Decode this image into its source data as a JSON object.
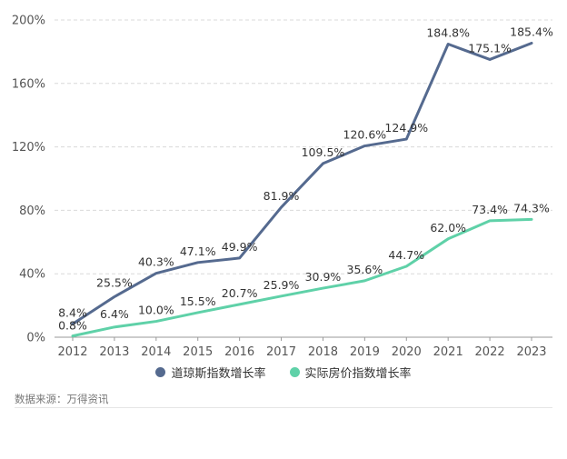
{
  "chart_data": {
    "type": "line",
    "categories": [
      "2012",
      "2013",
      "2014",
      "2015",
      "2016",
      "2017",
      "2018",
      "2019",
      "2020",
      "2021",
      "2022",
      "2023"
    ],
    "series": [
      {
        "name": "道琼斯指数增长率",
        "color": "#556a8f",
        "values": [
          8.4,
          25.5,
          40.3,
          47.1,
          49.9,
          81.9,
          109.5,
          120.6,
          124.9,
          184.8,
          175.1,
          185.4
        ],
        "labels": [
          "8.4%",
          "25.5%",
          "40.3%",
          "47.1%",
          "49.9%",
          "81.9%",
          "109.5%",
          "120.6%",
          "124.9%",
          "184.8%",
          "175.1%",
          "185.4%"
        ]
      },
      {
        "name": "实际房价指数增长率",
        "color": "#5fd1a8",
        "values": [
          0.8,
          6.4,
          10.0,
          15.5,
          20.7,
          25.9,
          30.9,
          35.6,
          44.7,
          62.0,
          73.4,
          74.3
        ],
        "labels": [
          "0.8%",
          "6.4%",
          "10.0%",
          "15.5%",
          "20.7%",
          "25.9%",
          "30.9%",
          "35.6%",
          "44.7%",
          "62.0%",
          "73.4%",
          "74.3%"
        ]
      }
    ],
    "ylim": [
      0,
      200
    ],
    "yticks": [
      0,
      40,
      80,
      120,
      160,
      200
    ],
    "ytick_labels": [
      "0%",
      "40%",
      "80%",
      "120%",
      "160%",
      "200%"
    ],
    "grid": "horizontal dashed",
    "legend_position": "bottom-center"
  },
  "source_note": "数据来源：万得资讯"
}
